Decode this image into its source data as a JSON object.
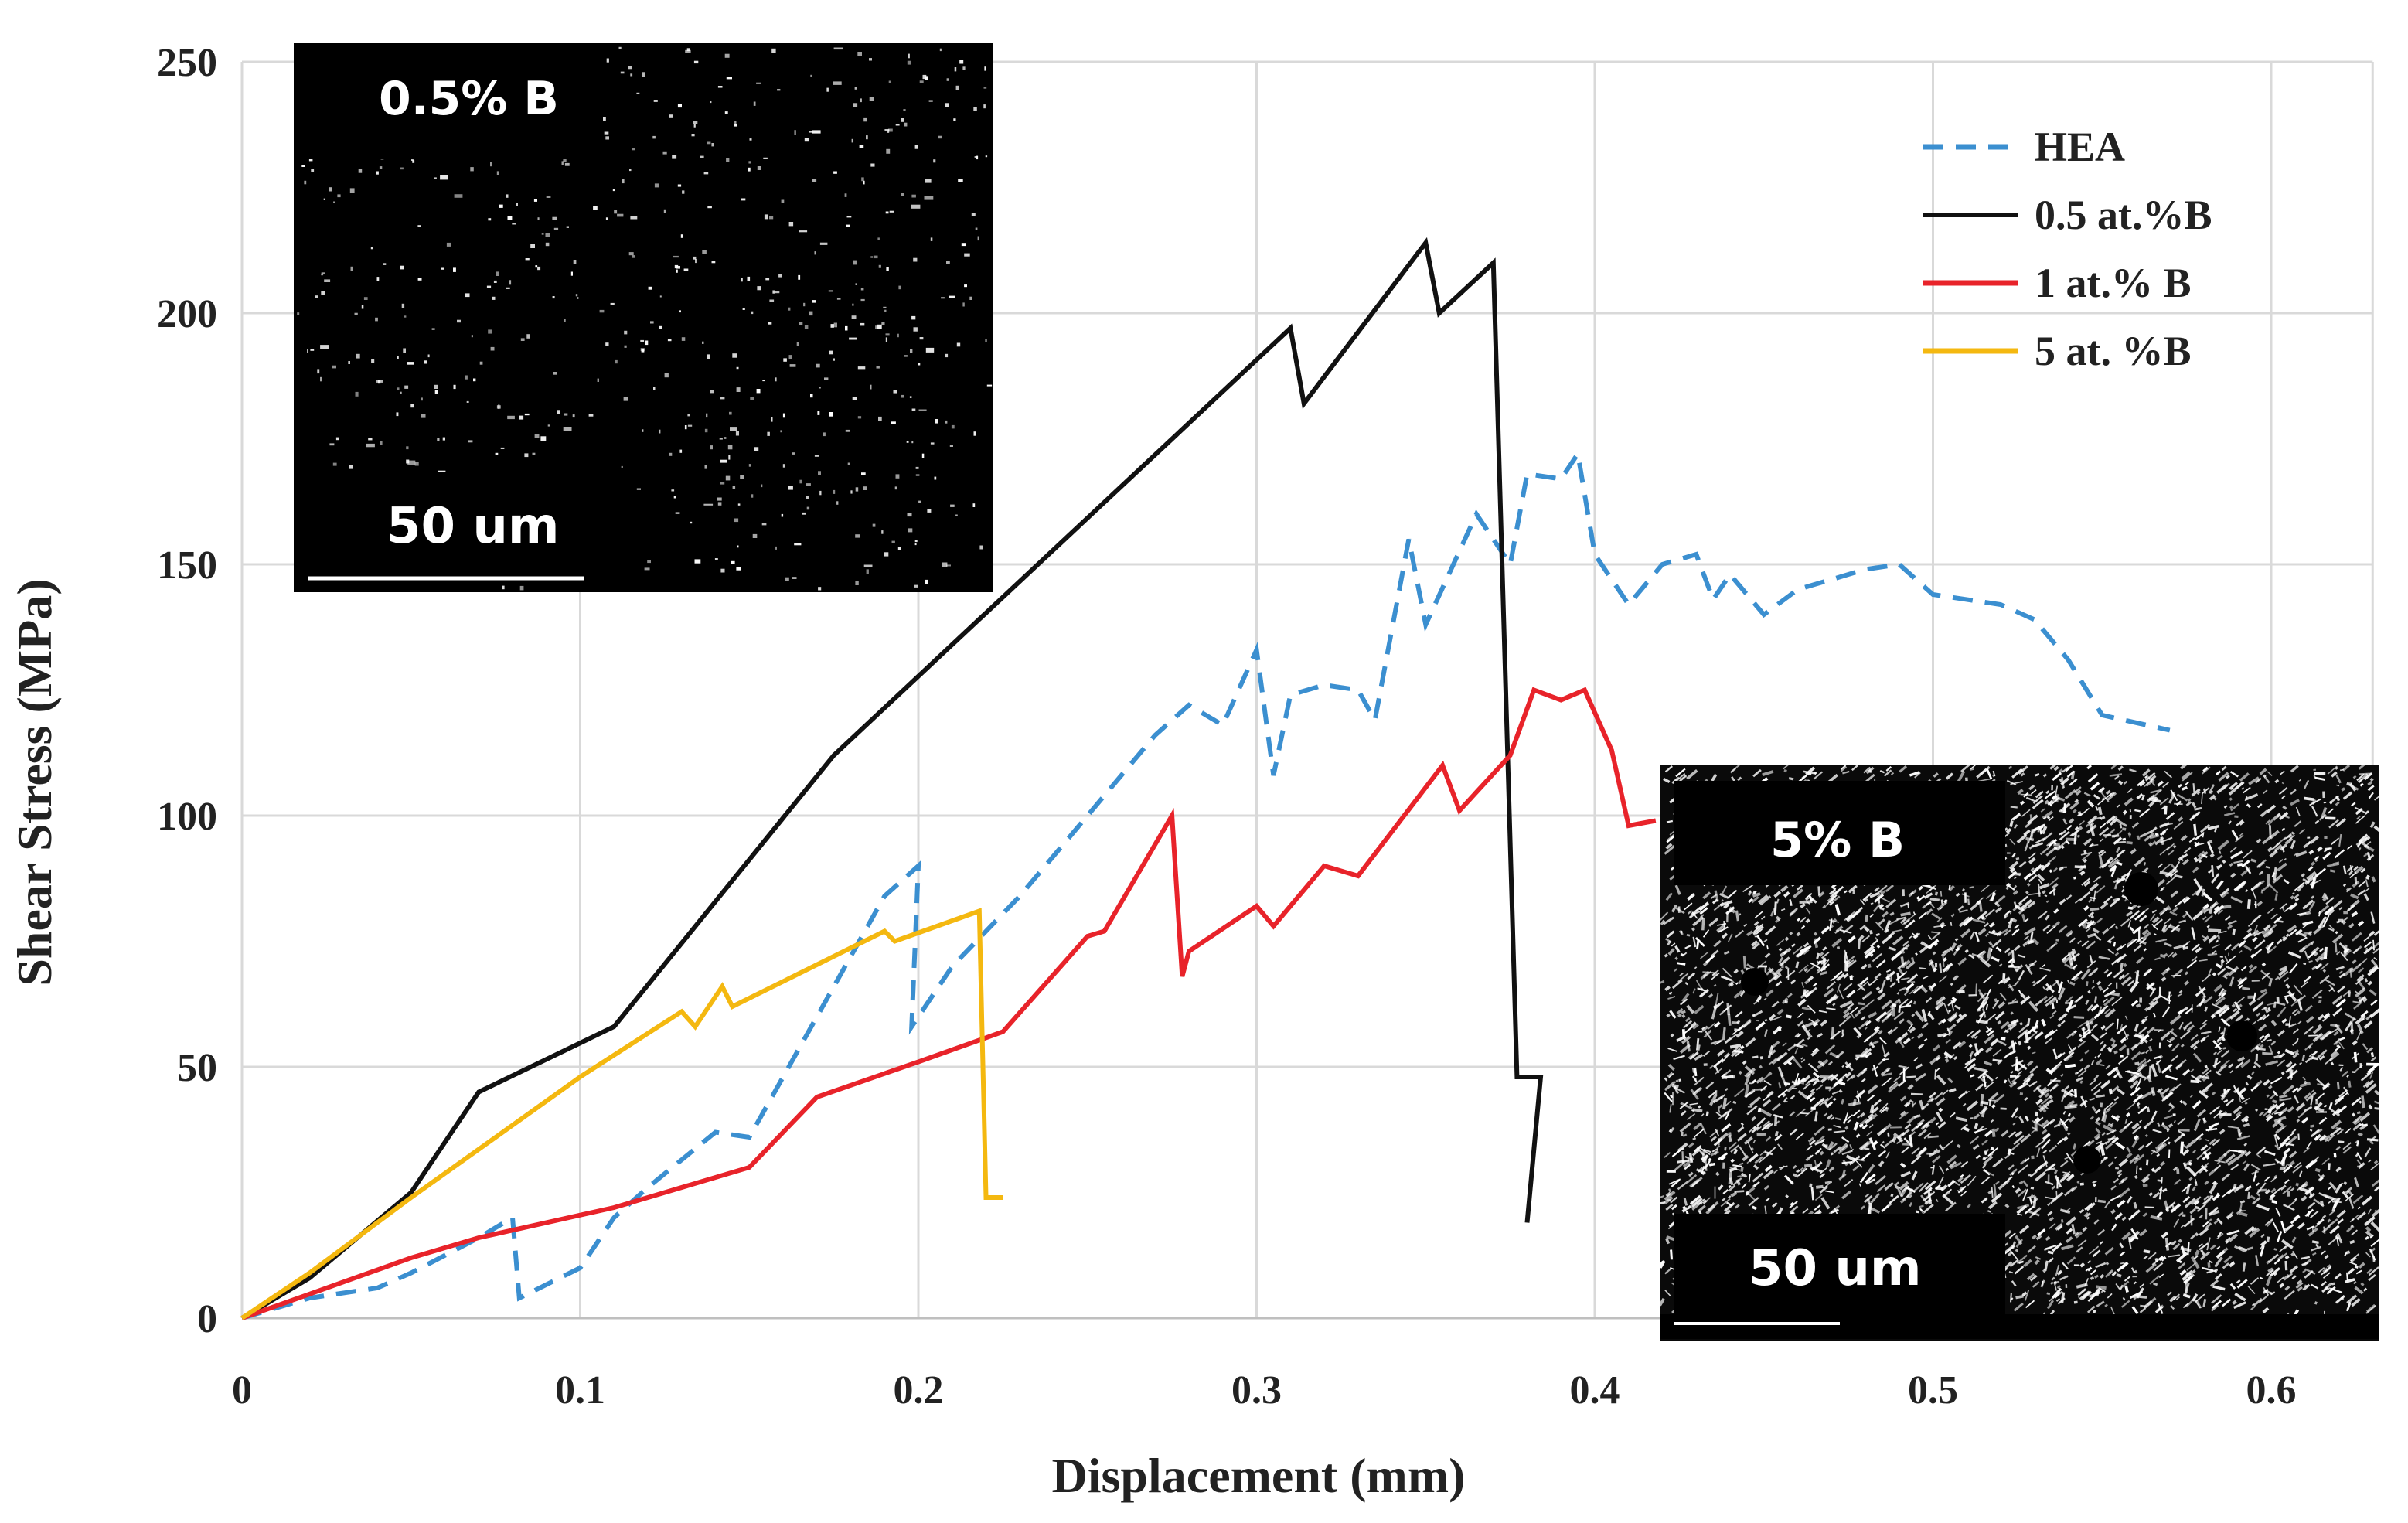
{
  "chart_data": {
    "type": "line",
    "title": "",
    "xlabel": "Displacement (mm)",
    "ylabel": "Shear Stress (MPa)",
    "xlim": [
      0,
      0.63
    ],
    "ylim": [
      0,
      250
    ],
    "xticks": [
      0,
      0.1,
      0.2,
      0.3,
      0.4,
      0.5,
      0.6
    ],
    "xtick_labels": [
      "0",
      "0.1",
      "0.2",
      "0.3",
      "0.4",
      "0.5",
      "0.6"
    ],
    "yticks": [
      0,
      50,
      100,
      150,
      200,
      250
    ],
    "ytick_labels": [
      "0",
      "50",
      "100",
      "150",
      "200",
      "250"
    ],
    "grid": true,
    "legend": "top-right",
    "series": [
      {
        "name": "HEA",
        "color": "#3b8fd0",
        "style": "dashed",
        "points": [
          [
            0,
            0
          ],
          [
            0.02,
            4
          ],
          [
            0.04,
            6
          ],
          [
            0.05,
            9
          ],
          [
            0.07,
            16
          ],
          [
            0.08,
            20
          ],
          [
            0.082,
            4
          ],
          [
            0.1,
            10
          ],
          [
            0.11,
            20
          ],
          [
            0.12,
            26
          ],
          [
            0.14,
            37
          ],
          [
            0.15,
            36
          ],
          [
            0.17,
            60
          ],
          [
            0.19,
            84
          ],
          [
            0.2,
            90
          ],
          [
            0.198,
            58
          ],
          [
            0.21,
            70
          ],
          [
            0.23,
            84
          ],
          [
            0.25,
            100
          ],
          [
            0.27,
            116
          ],
          [
            0.28,
            122
          ],
          [
            0.29,
            118
          ],
          [
            0.3,
            133
          ],
          [
            0.305,
            108
          ],
          [
            0.31,
            124
          ],
          [
            0.32,
            126
          ],
          [
            0.33,
            125
          ],
          [
            0.335,
            119
          ],
          [
            0.345,
            155
          ],
          [
            0.35,
            138
          ],
          [
            0.365,
            160
          ],
          [
            0.375,
            150
          ],
          [
            0.38,
            168
          ],
          [
            0.39,
            167
          ],
          [
            0.395,
            172
          ],
          [
            0.4,
            152
          ],
          [
            0.41,
            142
          ],
          [
            0.42,
            150
          ],
          [
            0.43,
            152
          ],
          [
            0.435,
            143
          ],
          [
            0.44,
            148
          ],
          [
            0.45,
            140
          ],
          [
            0.46,
            145
          ],
          [
            0.48,
            149
          ],
          [
            0.49,
            150
          ],
          [
            0.5,
            144
          ],
          [
            0.52,
            142
          ],
          [
            0.53,
            139
          ],
          [
            0.54,
            131
          ],
          [
            0.55,
            120
          ],
          [
            0.57,
            117
          ]
        ]
      },
      {
        "name": "0.5 at.%B",
        "color": "#111111",
        "style": "solid",
        "points": [
          [
            0,
            0
          ],
          [
            0.02,
            8
          ],
          [
            0.05,
            25
          ],
          [
            0.07,
            45
          ],
          [
            0.11,
            58
          ],
          [
            0.175,
            112
          ],
          [
            0.31,
            197
          ],
          [
            0.314,
            182
          ],
          [
            0.35,
            214
          ],
          [
            0.354,
            200
          ],
          [
            0.37,
            210
          ],
          [
            0.377,
            48
          ],
          [
            0.384,
            48
          ],
          [
            0.38,
            19
          ]
        ]
      },
      {
        "name": "1 at.% B",
        "color": "#e8232a",
        "style": "solid",
        "points": [
          [
            0,
            0
          ],
          [
            0.05,
            12
          ],
          [
            0.07,
            16
          ],
          [
            0.11,
            22
          ],
          [
            0.15,
            30
          ],
          [
            0.17,
            44
          ],
          [
            0.2,
            51
          ],
          [
            0.225,
            57
          ],
          [
            0.25,
            76
          ],
          [
            0.255,
            77
          ],
          [
            0.275,
            100
          ],
          [
            0.278,
            68
          ],
          [
            0.28,
            73
          ],
          [
            0.3,
            82
          ],
          [
            0.305,
            78
          ],
          [
            0.32,
            90
          ],
          [
            0.33,
            88
          ],
          [
            0.355,
            110
          ],
          [
            0.36,
            101
          ],
          [
            0.375,
            112
          ],
          [
            0.382,
            125
          ],
          [
            0.39,
            123
          ],
          [
            0.397,
            125
          ],
          [
            0.405,
            113
          ],
          [
            0.41,
            98
          ],
          [
            0.418,
            99
          ]
        ]
      },
      {
        "name": "5 at. %B",
        "color": "#f4b810",
        "style": "solid",
        "points": [
          [
            0,
            0
          ],
          [
            0.02,
            9
          ],
          [
            0.05,
            24
          ],
          [
            0.1,
            48
          ],
          [
            0.13,
            61
          ],
          [
            0.134,
            58
          ],
          [
            0.142,
            66
          ],
          [
            0.145,
            62
          ],
          [
            0.19,
            77
          ],
          [
            0.193,
            75
          ],
          [
            0.218,
            81
          ],
          [
            0.22,
            24
          ],
          [
            0.225,
            24
          ]
        ]
      }
    ]
  },
  "insets": [
    {
      "name": "inset-0.5B",
      "label": "0.5% B",
      "scale": "50 um"
    },
    {
      "name": "inset-5B",
      "label": "5% B",
      "scale": "50 um"
    }
  ]
}
